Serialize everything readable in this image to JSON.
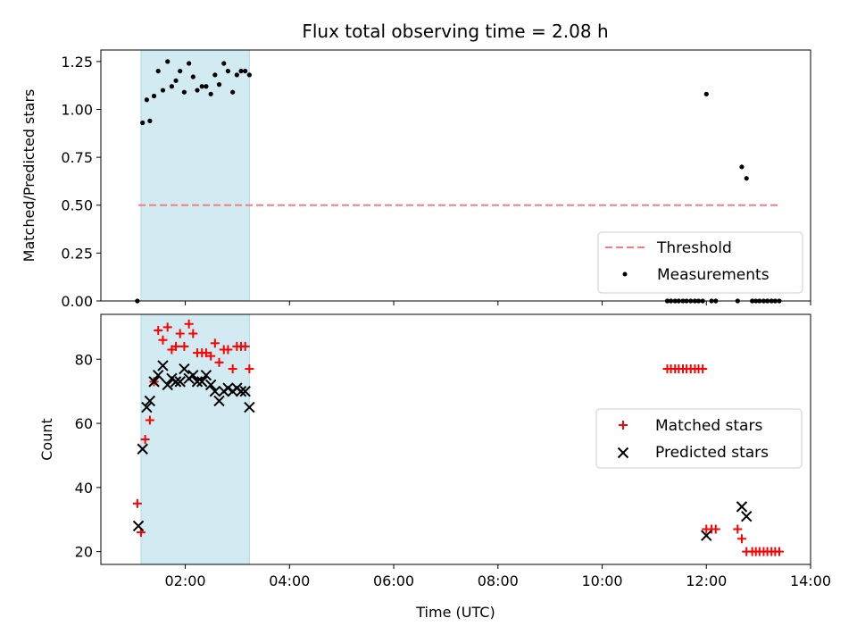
{
  "title": "Flux total observing time = 2.08 h",
  "colors": {
    "threshold": "#f08080",
    "matched": "#ff0000",
    "predicted": "#000000",
    "span": "#add8e6"
  },
  "chart_data": [
    {
      "type": "scatter",
      "ylabel": "Matched/Predicted stars",
      "xlim": [
        0.38,
        14.0
      ],
      "ylim": [
        0.0,
        1.31
      ],
      "yticks": [
        "0.00",
        "0.25",
        "0.50",
        "0.75",
        "1.00",
        "1.25"
      ],
      "yticks_values": [
        0,
        0.25,
        0.5,
        0.75,
        1.0,
        1.25
      ],
      "shaded_span": [
        1.15,
        3.23
      ],
      "threshold": {
        "label": "Threshold",
        "value": 0.5,
        "x_range": [
          1.1,
          13.4
        ]
      },
      "legend": {
        "placement": "lower-right",
        "entries": [
          "Threshold",
          "Measurements"
        ]
      },
      "series": [
        {
          "name": "Measurements",
          "x": [
            1.08,
            1.18,
            1.26,
            1.32,
            1.4,
            1.48,
            1.57,
            1.66,
            1.74,
            1.82,
            1.9,
            1.98,
            2.07,
            2.15,
            2.23,
            2.32,
            2.4,
            2.49,
            2.57,
            2.65,
            2.74,
            2.82,
            2.91,
            2.99,
            3.07,
            3.15,
            3.23,
            11.25,
            11.32,
            11.4,
            11.47,
            11.55,
            11.62,
            11.7,
            11.78,
            11.85,
            11.93,
            12.0,
            12.1,
            12.18,
            12.6,
            12.68,
            12.77,
            12.88,
            12.95,
            13.02,
            13.1,
            13.17,
            13.25,
            13.32,
            13.4
          ],
          "y": [
            0.0,
            0.93,
            1.05,
            0.94,
            1.07,
            1.2,
            1.1,
            1.25,
            1.12,
            1.15,
            1.2,
            1.09,
            1.24,
            1.17,
            1.1,
            1.12,
            1.12,
            1.08,
            1.18,
            1.13,
            1.24,
            1.2,
            1.09,
            1.18,
            1.2,
            1.2,
            1.18,
            0.0,
            0.0,
            0.0,
            0.0,
            0.0,
            0.0,
            0.0,
            0.0,
            0.0,
            0.0,
            1.08,
            0.0,
            0.0,
            0.0,
            0.7,
            0.64,
            0.0,
            0.0,
            0.0,
            0.0,
            0.0,
            0.0,
            0.0,
            0.0
          ]
        }
      ]
    },
    {
      "type": "scatter",
      "xlabel": "Time (UTC)",
      "ylabel": "Count",
      "xlim": [
        0.38,
        14.0
      ],
      "ylim": [
        16,
        94
      ],
      "yticks": [
        "20",
        "40",
        "60",
        "80"
      ],
      "yticks_values": [
        20,
        40,
        60,
        80
      ],
      "xticks": [
        "02:00",
        "04:00",
        "06:00",
        "08:00",
        "10:00",
        "12:00",
        "14:00"
      ],
      "xticks_values": [
        2,
        4,
        6,
        8,
        10,
        12,
        14
      ],
      "shaded_span": [
        1.15,
        3.23
      ],
      "legend": {
        "placement": "center-right",
        "entries": [
          "Matched stars",
          "Predicted stars"
        ]
      },
      "series": [
        {
          "name": "Matched stars",
          "x": [
            1.08,
            1.15,
            1.23,
            1.32,
            1.4,
            1.48,
            1.57,
            1.66,
            1.74,
            1.82,
            1.9,
            1.98,
            2.07,
            2.15,
            2.23,
            2.32,
            2.4,
            2.49,
            2.57,
            2.65,
            2.74,
            2.82,
            2.91,
            2.99,
            3.07,
            3.15,
            3.23,
            11.25,
            11.32,
            11.4,
            11.47,
            11.55,
            11.62,
            11.7,
            11.78,
            11.85,
            11.93,
            12.0,
            12.1,
            12.18,
            12.6,
            12.68,
            12.77,
            12.88,
            12.95,
            13.02,
            13.1,
            13.17,
            13.25,
            13.32,
            13.4
          ],
          "y": [
            35,
            26,
            55,
            61,
            73,
            89,
            86,
            90,
            83,
            84,
            88,
            84,
            91,
            88,
            82,
            82,
            82,
            81,
            85,
            79,
            83,
            83,
            77,
            84,
            84,
            84,
            77,
            77,
            77,
            77,
            77,
            77,
            77,
            77,
            77,
            77,
            77,
            27,
            27,
            27,
            27,
            24,
            20,
            20,
            20,
            20,
            20,
            20,
            20,
            20,
            20
          ]
        },
        {
          "name": "Predicted stars",
          "x": [
            1.1,
            1.18,
            1.26,
            1.32,
            1.4,
            1.48,
            1.57,
            1.66,
            1.74,
            1.82,
            1.9,
            1.98,
            2.07,
            2.15,
            2.23,
            2.32,
            2.4,
            2.49,
            2.57,
            2.65,
            2.74,
            2.82,
            2.91,
            2.99,
            3.07,
            3.15,
            3.23,
            12.0,
            12.68,
            12.77
          ],
          "y": [
            28,
            52,
            65,
            67,
            73,
            75,
            78,
            72,
            74,
            73,
            73,
            77,
            74,
            75,
            73,
            73,
            75,
            72,
            70,
            67,
            70,
            71,
            70,
            71,
            70,
            70,
            65,
            25,
            34,
            31
          ]
        }
      ]
    }
  ]
}
